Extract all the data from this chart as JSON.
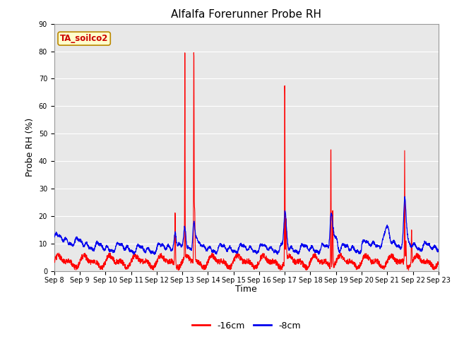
{
  "title": "Alfalfa Forerunner Probe RH",
  "ylabel": "Probe RH (%)",
  "xlabel": "Time",
  "annotation": "TA_soilco2",
  "legend_labels": [
    "-16cm",
    "-8cm"
  ],
  "legend_colors": [
    "#ff0000",
    "#0000ee"
  ],
  "ylim": [
    0,
    90
  ],
  "yticks": [
    0,
    10,
    20,
    30,
    40,
    50,
    60,
    70,
    80,
    90
  ],
  "xtick_labels": [
    "Sep 8",
    "Sep 9",
    "Sep 10",
    "Sep 11",
    "Sep 12",
    "Sep 13",
    "Sep 14",
    "Sep 15",
    "Sep 16",
    "Sep 17",
    "Sep 18",
    "Sep 19",
    "Sep 20",
    "Sep 21",
    "Sep 22",
    "Sep 23"
  ],
  "fig_bg_color": "#ffffff",
  "plot_bg_color": "#e8e8e8",
  "red_line_color": "#ff0000",
  "blue_line_color": "#0000ee",
  "grid_color": "#ffffff",
  "title_fontsize": 11,
  "axis_fontsize": 9,
  "tick_fontsize": 8
}
